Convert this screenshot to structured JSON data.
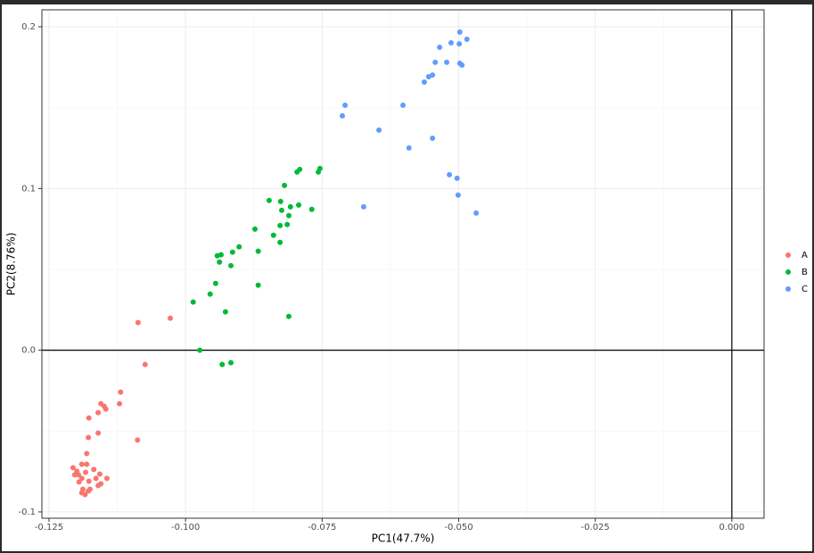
{
  "chart_data": {
    "type": "scatter",
    "x_label": "PC1(47.7%)",
    "y_label": "PC2(8.76%)",
    "xlim": [
      -0.1263,
      0.0059
    ],
    "ylim": [
      -0.1039,
      0.2105
    ],
    "xticks": [
      {
        "value": -0.125,
        "label": "-0.125"
      },
      {
        "value": -0.1,
        "label": "-0.100"
      },
      {
        "value": -0.075,
        "label": "-0.075"
      },
      {
        "value": -0.05,
        "label": "-0.050"
      },
      {
        "value": -0.025,
        "label": "-0.025"
      },
      {
        "value": 0,
        "label": "0.000"
      }
    ],
    "yticks": [
      -0.1,
      {
        "value": 0,
        "label": "0.0"
      },
      0.1,
      0.2
    ],
    "grid": true,
    "hline": 0,
    "vline": 0,
    "legend": "right",
    "series": [
      {
        "name": "A",
        "color": "#F8766D",
        "x": [
          -0.1087,
          -0.1028,
          -0.1074,
          -0.1119,
          -0.1121,
          -0.1155,
          -0.1149,
          -0.1146,
          -0.116,
          -0.1177,
          -0.116,
          -0.1178,
          -0.1088,
          -0.1181,
          -0.1181,
          -0.1206,
          -0.119,
          -0.1168,
          -0.1199,
          -0.1183,
          -0.1196,
          -0.1203,
          -0.1157,
          -0.1144,
          -0.1164,
          -0.119,
          -0.1177,
          -0.1195,
          -0.1155,
          -0.116,
          -0.1175,
          -0.1188,
          -0.1178,
          -0.1184,
          -0.119
        ],
        "values": [
          0.0171,
          0.0198,
          -0.0088,
          -0.0259,
          -0.0331,
          -0.0331,
          -0.0347,
          -0.0364,
          -0.0386,
          -0.0419,
          -0.0512,
          -0.054,
          -0.0556,
          -0.0639,
          -0.0705,
          -0.0727,
          -0.0705,
          -0.0738,
          -0.0749,
          -0.0755,
          -0.0771,
          -0.0771,
          -0.0766,
          -0.0793,
          -0.0793,
          -0.0793,
          -0.081,
          -0.0815,
          -0.0826,
          -0.0837,
          -0.086,
          -0.086,
          -0.0871,
          -0.0893,
          -0.0882
        ]
      },
      {
        "name": "B",
        "color": "#00BA38",
        "x": [
          -0.0791,
          -0.0754,
          -0.0757,
          -0.0796,
          -0.0819,
          -0.0847,
          -0.0826,
          -0.0793,
          -0.0808,
          -0.0769,
          -0.0824,
          -0.0811,
          -0.0827,
          -0.0814,
          -0.0839,
          -0.0873,
          -0.0827,
          -0.0902,
          -0.0867,
          -0.0935,
          -0.0942,
          -0.0914,
          -0.0938,
          -0.0917,
          -0.0945,
          -0.0867,
          -0.0955,
          -0.0986,
          -0.0927,
          -0.0811,
          -0.0974,
          -0.0917,
          -0.0933
        ],
        "values": [
          0.1118,
          0.1124,
          0.1102,
          0.1102,
          0.1019,
          0.0926,
          0.092,
          0.0898,
          0.0887,
          0.0871,
          0.0865,
          0.0832,
          0.0771,
          0.0777,
          0.0711,
          0.0749,
          0.0667,
          0.0639,
          0.0612,
          0.059,
          0.0584,
          0.0606,
          0.0545,
          0.0523,
          0.0413,
          0.0402,
          0.0347,
          0.0298,
          0.0237,
          0.0209,
          0.0,
          -0.0077,
          -0.0088
        ]
      },
      {
        "name": "C",
        "color": "#619CFF",
        "x": [
          -0.0498,
          -0.0485,
          -0.0514,
          -0.0499,
          -0.0535,
          -0.0543,
          -0.0522,
          -0.0498,
          -0.0494,
          -0.0548,
          -0.0555,
          -0.0563,
          -0.0708,
          -0.0713,
          -0.0602,
          -0.0646,
          -0.0591,
          -0.0548,
          -0.0517,
          -0.0503,
          -0.0501,
          -0.0468,
          -0.0674
        ],
        "values": [
          0.1967,
          0.1923,
          0.1901,
          0.1895,
          0.1873,
          0.178,
          0.178,
          0.1774,
          0.1763,
          0.1702,
          0.1691,
          0.1658,
          0.1515,
          0.1449,
          0.1515,
          0.1361,
          0.1251,
          0.1311,
          0.1085,
          0.1063,
          0.0959,
          0.0848,
          0.0887
        ]
      }
    ]
  }
}
